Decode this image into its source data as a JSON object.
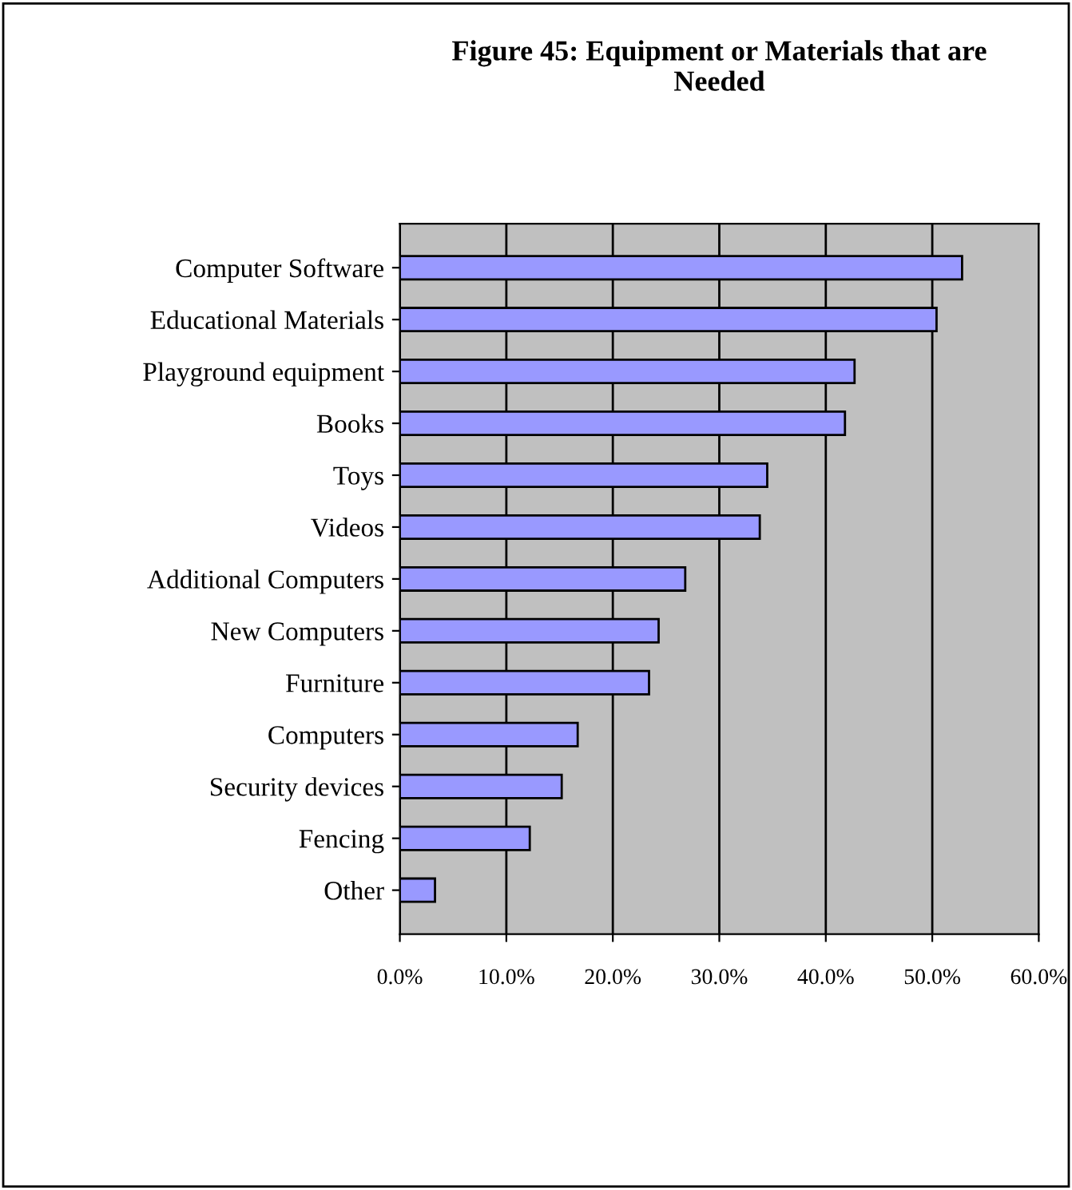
{
  "chart_data": {
    "type": "bar",
    "orientation": "horizontal",
    "title": "Figure 45: Equipment or Materials that are\nNeeded",
    "categories": [
      "Computer Software",
      "Educational Materials",
      "Playground equipment",
      "Books",
      "Toys",
      "Videos",
      "Additional Computers",
      "New Computers",
      "Furniture",
      "Computers",
      "Security devices",
      "Fencing",
      "Other"
    ],
    "values": [
      52.8,
      50.4,
      42.7,
      41.8,
      34.5,
      33.8,
      26.8,
      24.3,
      23.4,
      16.7,
      15.2,
      12.2,
      3.3
    ],
    "color": "#9999ff",
    "xlim": [
      0,
      60
    ],
    "xticks": [
      {
        "value": 0,
        "label": "0.0%"
      },
      {
        "value": 10,
        "label": "10.0%"
      },
      {
        "value": 20,
        "label": "20.0%"
      },
      {
        "value": 30,
        "label": "30.0%"
      },
      {
        "value": 40,
        "label": "40.0%"
      },
      {
        "value": 50,
        "label": "50.0%"
      },
      {
        "value": 60,
        "label": "60.0%"
      }
    ],
    "grid": "x",
    "legend": false
  }
}
